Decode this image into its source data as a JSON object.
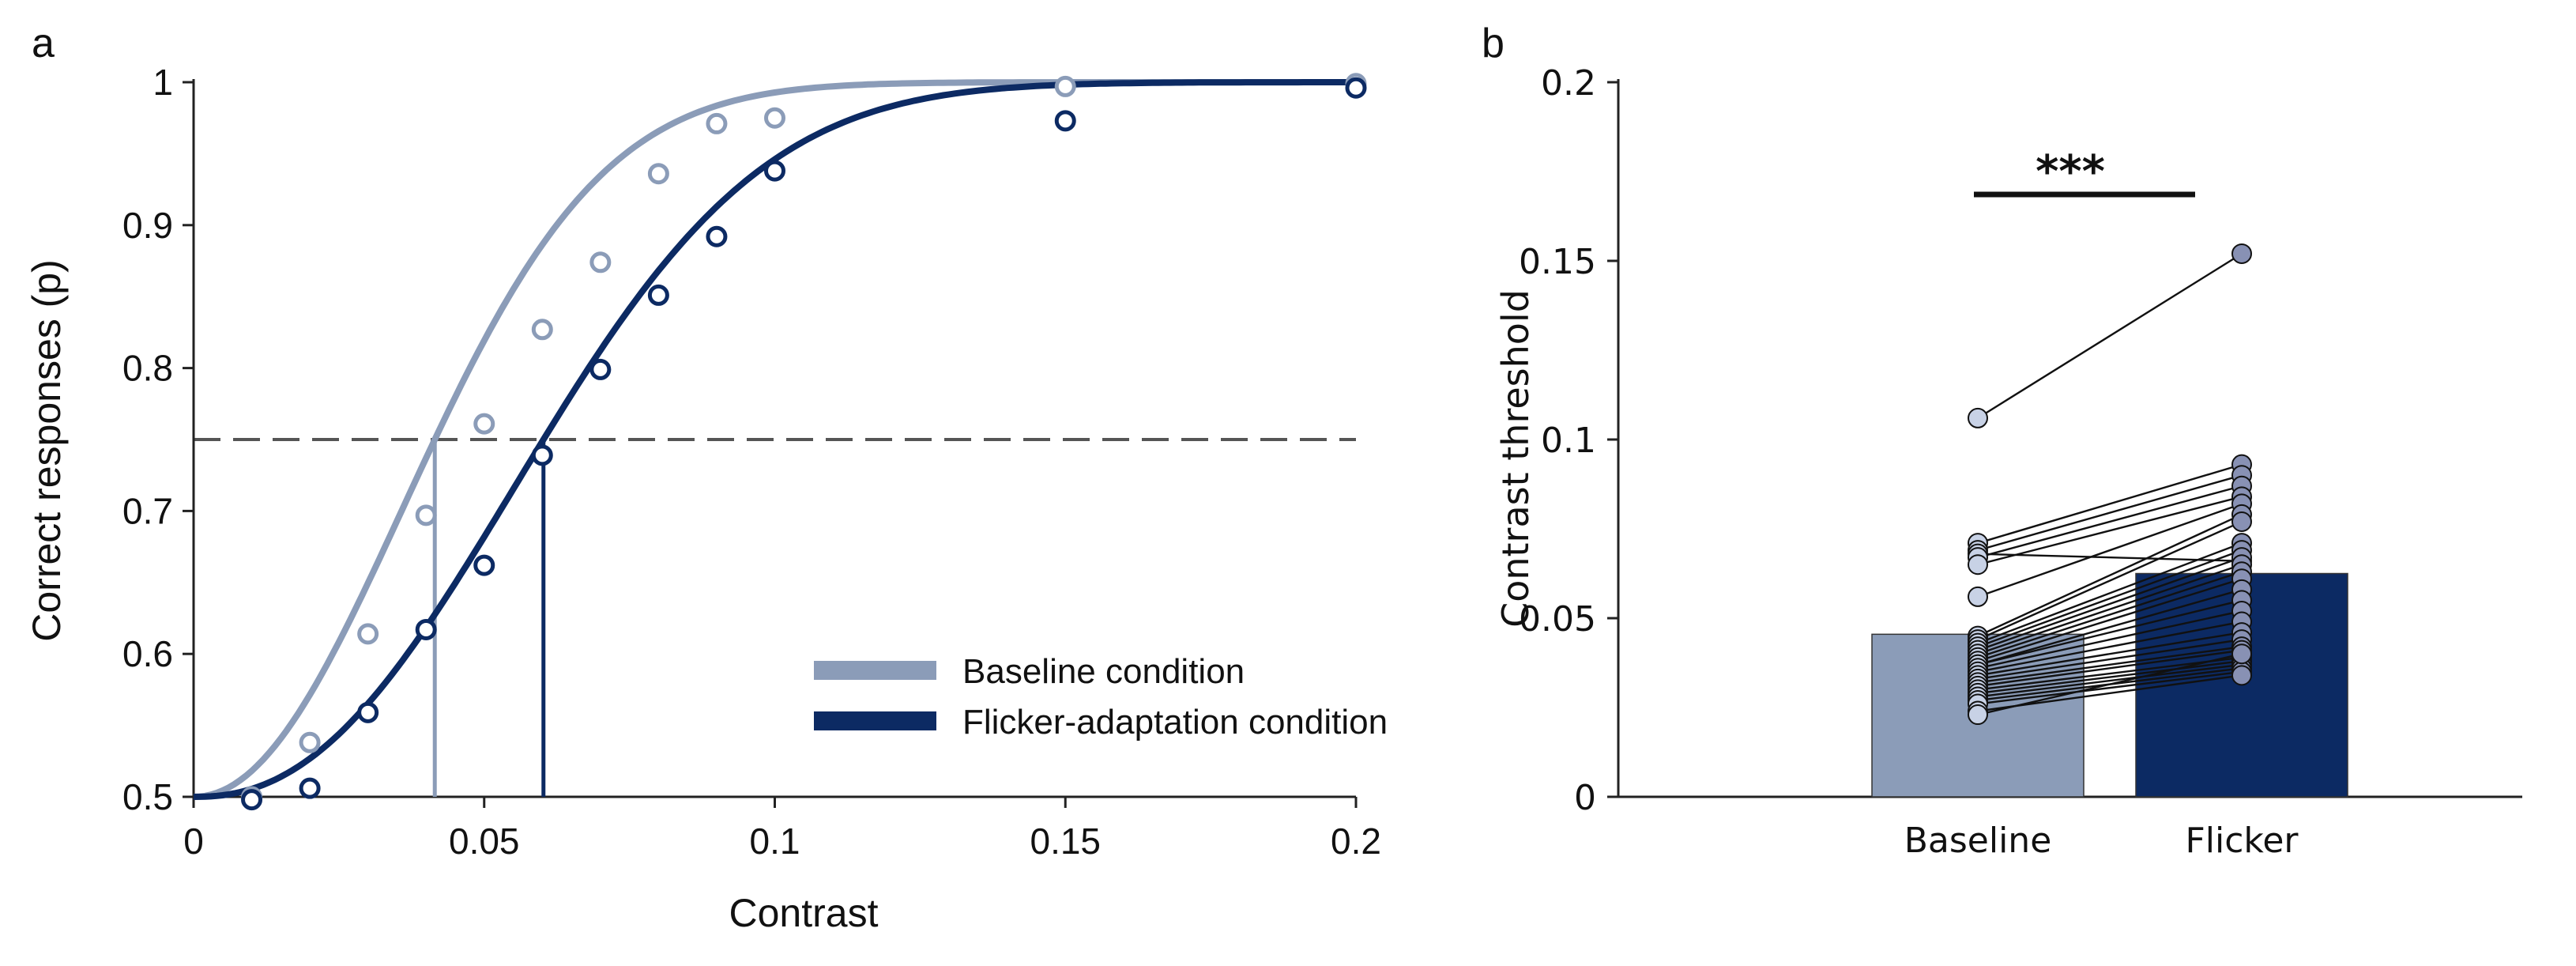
{
  "chart_data": [
    {
      "panel_label": "a",
      "type": "line",
      "xlabel": "Contrast",
      "ylabel": "Correct responses (p)",
      "xlim": [
        0,
        0.2
      ],
      "ylim": [
        0.5,
        1.0
      ],
      "xticks": [
        "0",
        "0.05",
        "0.1",
        "0.15",
        "0.2"
      ],
      "yticks": [
        "0.5",
        "0.6",
        "0.7",
        "0.8",
        "0.9",
        "1"
      ],
      "threshold_level": 0.75,
      "legend_position": "bottom-right",
      "series": [
        {
          "name": "Baseline condition",
          "color": "#8b9cb8",
          "threshold": 0.0415,
          "fit": {
            "alpha": 0.0415,
            "beta": 2.06
          },
          "points": {
            "x": [
              0.01,
              0.02,
              0.03,
              0.04,
              0.05,
              0.06,
              0.07,
              0.08,
              0.09,
              0.1,
              0.15,
              0.2
            ],
            "y": [
              0.5,
              0.538,
              0.614,
              0.697,
              0.761,
              0.827,
              0.874,
              0.936,
              0.971,
              0.975,
              0.997,
              0.999
            ]
          }
        },
        {
          "name": "Flicker-adaptation condition",
          "color": "#0c2a63",
          "threshold": 0.0602,
          "fit": {
            "alpha": 0.0602,
            "beta": 2.3
          },
          "points": {
            "x": [
              0.01,
              0.02,
              0.03,
              0.04,
              0.05,
              0.06,
              0.07,
              0.08,
              0.09,
              0.1,
              0.15,
              0.2
            ],
            "y": [
              0.498,
              0.506,
              0.559,
              0.617,
              0.662,
              0.739,
              0.799,
              0.851,
              0.892,
              0.938,
              0.973,
              0.996
            ]
          }
        }
      ]
    },
    {
      "panel_label": "b",
      "type": "bar",
      "ylabel": "Contrast threshold",
      "categories": [
        "Baseline",
        "Flicker"
      ],
      "values": [
        0.0455,
        0.0625
      ],
      "ylim": [
        0,
        0.2
      ],
      "yticks": [
        "0",
        "0.05",
        "0.1",
        "0.15",
        "0.2"
      ],
      "bar_colors": [
        "#8b9cb8",
        "#0c2a63"
      ],
      "dot_colors": [
        "#c8d2e6",
        "#8891b4"
      ],
      "significance": "***",
      "paired_points": [
        [
          0.106,
          0.152
        ],
        [
          0.071,
          0.093
        ],
        [
          0.069,
          0.09
        ],
        [
          0.068,
          0.066
        ],
        [
          0.067,
          0.087
        ],
        [
          0.065,
          0.084
        ],
        [
          0.056,
          0.082
        ],
        [
          0.045,
          0.079
        ],
        [
          0.044,
          0.077
        ],
        [
          0.043,
          0.071
        ],
        [
          0.042,
          0.069
        ],
        [
          0.041,
          0.067
        ],
        [
          0.04,
          0.065
        ],
        [
          0.039,
          0.063
        ],
        [
          0.038,
          0.061
        ],
        [
          0.037,
          0.058
        ],
        [
          0.037,
          0.055
        ],
        [
          0.036,
          0.052
        ],
        [
          0.035,
          0.049
        ],
        [
          0.034,
          0.046
        ],
        [
          0.033,
          0.044
        ],
        [
          0.032,
          0.042
        ],
        [
          0.031,
          0.041
        ],
        [
          0.03,
          0.039
        ],
        [
          0.029,
          0.038
        ],
        [
          0.028,
          0.037
        ],
        [
          0.027,
          0.036
        ],
        [
          0.026,
          0.035
        ],
        [
          0.024,
          0.034
        ],
        [
          0.023,
          0.04
        ]
      ]
    }
  ]
}
